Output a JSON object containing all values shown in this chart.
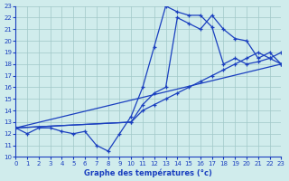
{
  "xlabel": "Graphe des températures (°c)",
  "xlim": [
    0,
    23
  ],
  "ylim": [
    10,
    23
  ],
  "xticks": [
    0,
    1,
    2,
    3,
    4,
    5,
    6,
    7,
    8,
    9,
    10,
    11,
    12,
    13,
    14,
    15,
    16,
    17,
    18,
    19,
    20,
    21,
    22,
    23
  ],
  "yticks": [
    10,
    11,
    12,
    13,
    14,
    15,
    16,
    17,
    18,
    19,
    20,
    21,
    22,
    23
  ],
  "background_color": "#d0ecec",
  "grid_color": "#a0c8c8",
  "line_color": "#1a3fbf",
  "line1_x": [
    0,
    1,
    2,
    3,
    4,
    5,
    6,
    7,
    8,
    9,
    10,
    11,
    12,
    13,
    14,
    15,
    16,
    17,
    18,
    19,
    20,
    21,
    22,
    23
  ],
  "line1_y": [
    12.5,
    12.0,
    12.5,
    12.5,
    12.2,
    12.0,
    12.2,
    11.0,
    10.5,
    12.0,
    13.5,
    16.0,
    19.5,
    23.0,
    22.5,
    22.2,
    22.2,
    21.2,
    18.0,
    18.5,
    18.0,
    18.2,
    18.5,
    18.0
  ],
  "line2_x": [
    0,
    10,
    11,
    12,
    13,
    14,
    15,
    16,
    17,
    18,
    19,
    20,
    21,
    22,
    23
  ],
  "line2_y": [
    12.5,
    13.0,
    14.5,
    15.5,
    16.0,
    22.0,
    21.5,
    21.0,
    22.2,
    21.0,
    20.2,
    20.0,
    18.5,
    19.0,
    18.0
  ],
  "line3_x": [
    0,
    10,
    11,
    12,
    13,
    14,
    15,
    16,
    17,
    18,
    19,
    20,
    21,
    22,
    23
  ],
  "line3_y": [
    12.5,
    13.0,
    14.0,
    14.5,
    15.0,
    15.5,
    16.0,
    16.5,
    17.0,
    17.5,
    18.0,
    18.5,
    19.0,
    18.5,
    19.0
  ],
  "line4_x": [
    0,
    23
  ],
  "line4_y": [
    12.5,
    18.0
  ]
}
